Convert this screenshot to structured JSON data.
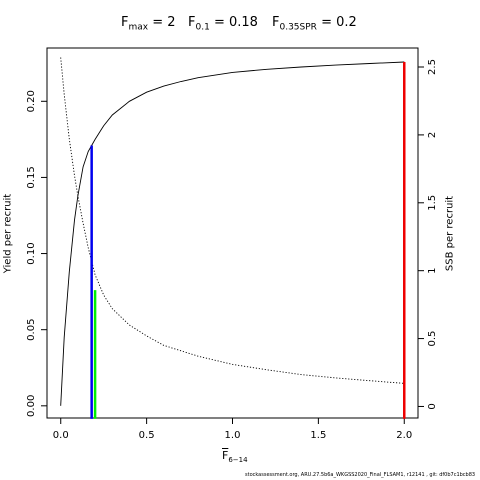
{
  "title": {
    "f_max": {
      "symbol": "F",
      "sub": "max",
      "value": "= 2"
    },
    "f_01": {
      "symbol": "F",
      "sub": "0.1",
      "value": "= 0.18"
    },
    "f_035spr": {
      "symbol": "F",
      "sub": "0.35SPR",
      "value": "= 0.2"
    }
  },
  "footnote": "stockassessment.org, ARU.27.5b6a_WKGSS2020_Final_FLSAM1, r12141 , git: df0b7c1bcb83",
  "chart_data": {
    "type": "line",
    "xlabel": {
      "main": "F",
      "sub": "6−14"
    },
    "ylabel": "Yield per recruit",
    "y2label": "SSB per recruit",
    "xlim": [
      -0.08,
      2.08
    ],
    "ylim": [
      -0.008,
      0.235
    ],
    "y2lim": [
      -0.085,
      2.64
    ],
    "x_ticks": [
      0,
      0.5,
      1,
      1.5,
      2
    ],
    "x_tick_labels": [
      "0.0",
      "0.5",
      "1.0",
      "1.5",
      "2.0"
    ],
    "y_ticks": [
      0,
      0.05,
      0.1,
      0.15,
      0.2
    ],
    "y_tick_labels": [
      "0.00",
      "0.05",
      "0.10",
      "0.15",
      "0.20"
    ],
    "y2_ticks": [
      0,
      0.5,
      1,
      1.5,
      2,
      2.5
    ],
    "y2_tick_labels": [
      "0",
      "0.5",
      "1",
      "1.5",
      "2",
      "2.5"
    ],
    "series": [
      {
        "style": "solid",
        "axis": "left",
        "color": "#000000",
        "x": [
          0,
          0.02,
          0.05,
          0.08,
          0.1,
          0.13,
          0.16,
          0.18,
          0.2,
          0.25,
          0.3,
          0.4,
          0.5,
          0.6,
          0.7,
          0.8,
          1.0,
          1.2,
          1.4,
          1.6,
          1.8,
          2.0
        ],
        "y": [
          0,
          0.045,
          0.088,
          0.122,
          0.138,
          0.157,
          0.167,
          0.171,
          0.175,
          0.184,
          0.191,
          0.2,
          0.206,
          0.21,
          0.213,
          0.2155,
          0.219,
          0.221,
          0.2225,
          0.2238,
          0.2248,
          0.2258
        ]
      },
      {
        "style": "dotted",
        "axis": "right",
        "color": "#000000",
        "x": [
          0,
          0.02,
          0.05,
          0.08,
          0.1,
          0.13,
          0.16,
          0.2,
          0.25,
          0.3,
          0.4,
          0.5,
          0.6,
          0.7,
          0.8,
          1.0,
          1.2,
          1.4,
          1.6,
          1.8,
          2.0
        ],
        "y": [
          2.57,
          2.3,
          1.97,
          1.7,
          1.55,
          1.35,
          1.17,
          0.97,
          0.82,
          0.72,
          0.6,
          0.52,
          0.45,
          0.41,
          0.37,
          0.31,
          0.27,
          0.235,
          0.21,
          0.19,
          0.17
        ]
      }
    ],
    "reference_lines": [
      {
        "x": 0.18,
        "y_top": 0.171,
        "color": "#0000ee"
      },
      {
        "x": 0.2,
        "y_top": 0.076,
        "color": "#00ee00"
      },
      {
        "x": 2.0,
        "y_top": 0.2258,
        "color": "#ee0000"
      }
    ]
  }
}
